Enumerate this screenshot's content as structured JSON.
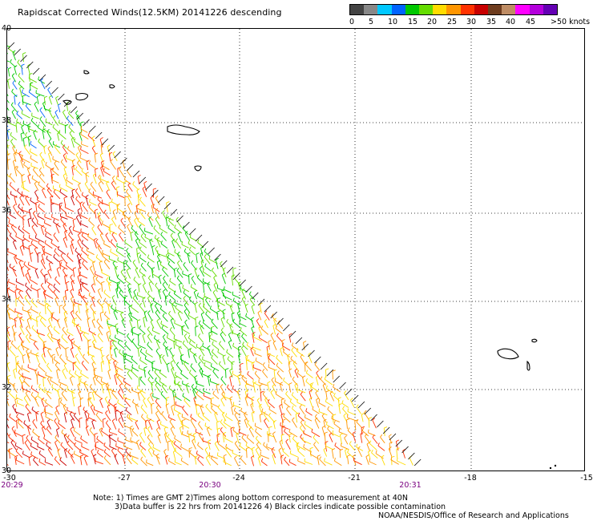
{
  "title": "Rapidscat Corrected Winds(12.5KM) 20141226 descending",
  "legend": {
    "colors": [
      "#444444",
      "#888888",
      "#00c8ff",
      "#0064ff",
      "#00c800",
      "#64dc00",
      "#ffdc00",
      "#ff9600",
      "#ff3200",
      "#c80000",
      "#6e3c1e",
      "#be8c64",
      "#ff00ff",
      "#b400dc",
      "#6400b4"
    ],
    "labels": [
      "0",
      "5",
      "10",
      "15",
      "20",
      "25",
      "30",
      "35",
      "40",
      "45",
      ">50 knots"
    ]
  },
  "latitudes": [
    "40",
    "38",
    "36",
    "34",
    "32",
    "30"
  ],
  "longitudes": [
    "-30",
    "-27",
    "-24",
    "-21",
    "-18",
    "-15"
  ],
  "times": [
    "20:29",
    "20:30",
    "20:31"
  ],
  "notes": {
    "line1": "Note: 1) Times are GMT 2)Times along bottom correspond to measurement at 40N",
    "line2": "3)Data buffer is 22 hrs from 20141226 4) Black circles indicate possible contamination",
    "line3": "NOAA/NESDIS/Office of Research and Applications"
  },
  "map": {
    "lat_range": [
      30,
      40
    ],
    "lon_range": [
      -30,
      -15
    ],
    "swath_note": "Wind barbs colored by speed in knots; swath triangle in western portion"
  }
}
